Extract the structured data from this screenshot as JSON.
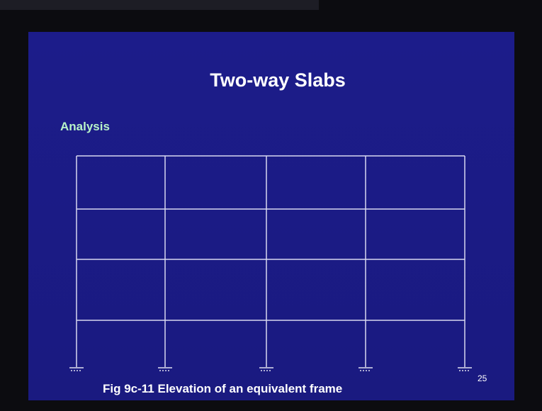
{
  "slide": {
    "title": "Two-way Slabs",
    "heading": "Analysis",
    "caption": "Fig 9c-11 Elevation of an equivalent frame",
    "page_number": "25"
  }
}
